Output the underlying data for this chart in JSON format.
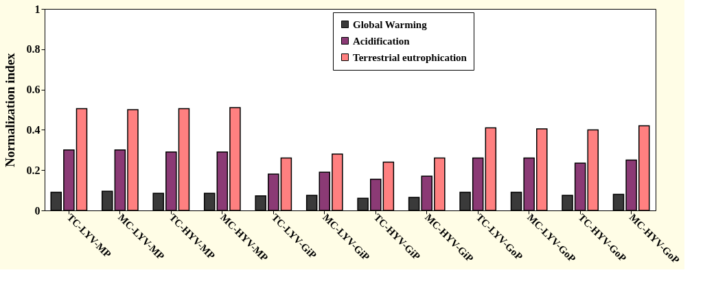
{
  "chart_data": {
    "type": "bar",
    "ylabel": "Normalization index",
    "categories": [
      "TC-LYV-MP",
      "MC-LYV-MP",
      "TC-HYV-MP",
      "MC-HYV-MP",
      "TC-LYV-GiP",
      "MC-LYV-GiP",
      "TC-HYV-GiP",
      "MC-HYV-GiP",
      "TC-LYV-GoP",
      "MC-LYV-GoP",
      "TC-HYV-GoP",
      "MC-HYV-GoP"
    ],
    "series": [
      {
        "name": "Global Warming",
        "color": "#3a3a3a",
        "values": [
          0.09,
          0.095,
          0.085,
          0.085,
          0.072,
          0.075,
          0.06,
          0.065,
          0.09,
          0.09,
          0.075,
          0.08
        ]
      },
      {
        "name": "Acidification",
        "color": "#8b3a75",
        "values": [
          0.3,
          0.3,
          0.29,
          0.29,
          0.18,
          0.19,
          0.155,
          0.17,
          0.26,
          0.26,
          0.235,
          0.25
        ]
      },
      {
        "name": "Terrestrial eutrophication",
        "color": "#ff8080",
        "values": [
          0.505,
          0.5,
          0.505,
          0.51,
          0.26,
          0.28,
          0.24,
          0.26,
          0.41,
          0.405,
          0.4,
          0.42
        ]
      }
    ],
    "ylim": [
      0,
      1
    ],
    "yticks": [
      0,
      0.2,
      0.4,
      0.6,
      0.8,
      1
    ],
    "grid": false,
    "legend": "top"
  }
}
